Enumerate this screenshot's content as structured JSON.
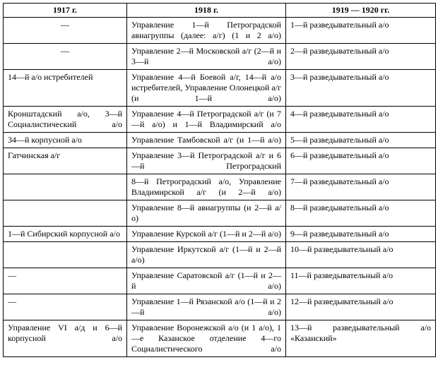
{
  "headers": [
    "1917 г.",
    "1918 г.",
    "1919 — 1920 гг."
  ],
  "rows": [
    {
      "c1": "—",
      "c1dash": true,
      "c2": "Управление 1—й Петроградской авиагруппы (далее: а/г) (1 и 2 а/о)",
      "c3": "1—й разведывательный а/о"
    },
    {
      "c1": "—",
      "c1dash": true,
      "c2": "Управление 2—й Московской а/г (2—й и 3—й а/о)",
      "c3": "2—й разведывательный а/о"
    },
    {
      "c1": "14—й а/о истребителей",
      "c2": "Управление 4—й Боевой а/г, 14—й а/о истребителей, Управление Олонецкой а/г (и 1—й а/о)",
      "c3": "3—й разведывательный а/о"
    },
    {
      "c1": "Кронштадский а/о, 3—й Социалистический а/о",
      "c1j": true,
      "c2": "Управление 4—й Петроградской а/г (и 7—й а/о) и 1—й Владимирский а/о",
      "c3": "4—й разведывательный а/о"
    },
    {
      "c1": "34—й корпусной а/о",
      "c2": "Управление Тамбовской а/г (и 1—й а/о)",
      "c3": "5—й разведывательный а/о"
    },
    {
      "c1": "Гатчинская а/г",
      "c2": "Управление 3—й Петроградской а/г и 6—й Петроградский",
      "c3": "6—й разведывательный а/о"
    },
    {
      "c1": "",
      "c2": "8—й Петроградский а/о, Управление Владимирской а/г (и 2—й а/о)",
      "c3": "7—й разведывательный а/о"
    },
    {
      "c1": "",
      "c2": "Управление 8—й авиагруппы (и 2—й а/о)",
      "c3": "8—й разведывательный а/о"
    },
    {
      "c1": "1—й Сибирский корпусной а/о",
      "c2": "Управление Курской а/г (1—й и 2—й а/о)",
      "c3": "9—й разведывательный а/о"
    },
    {
      "c1": "",
      "c2": "Управление Иркутской а/г (1—й и 2—й а/о)",
      "c3": "10—й разведывательный а/о"
    },
    {
      "c1": "—",
      "c1dash": false,
      "c2": "Управление Саратовской а/г (1—й и 2—й а/о)",
      "c3": "11—й разведывательный а/о"
    },
    {
      "c1": "—",
      "c1dash": false,
      "c2": "Управление 1—й Рязанской а/о (1—й и 2—й а/о)",
      "c3": "12—й разведывательный а/о"
    },
    {
      "c1": "Управление VI а/д и 6—й корпусной а/о",
      "c1j": true,
      "c2": "Управление Воронежской а/о (и 1 а/о), 1—е Казанское отделение 4—го Социалистического а/о",
      "c3": "13—й разведывательный а/о «Казанский»",
      "c3j": true
    }
  ]
}
